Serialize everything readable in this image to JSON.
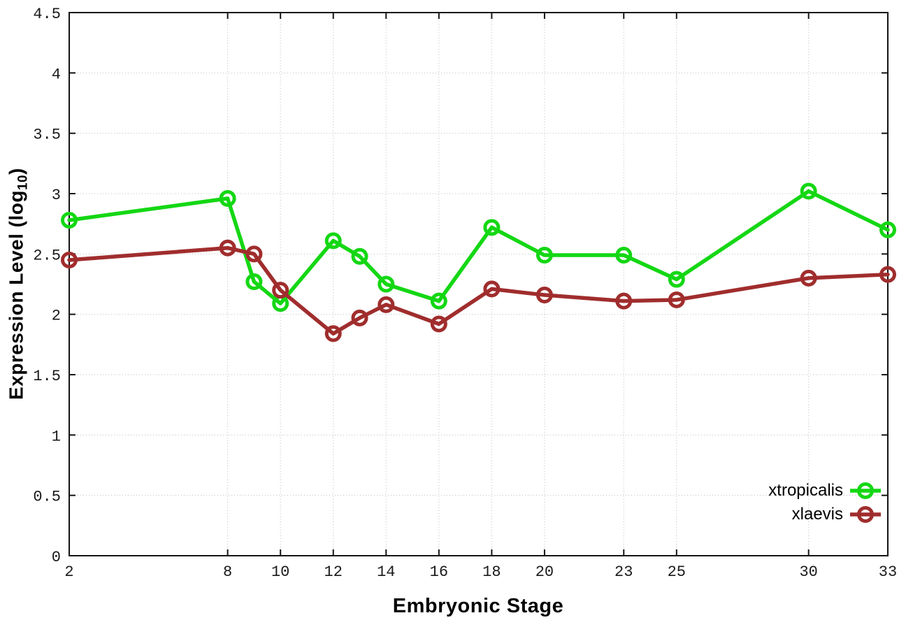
{
  "figure": {
    "background": "#ffffff",
    "border_color": "#141414",
    "grid_color": "#bfbfbf",
    "tick_label_color": "#1a1a1a"
  },
  "x_axis": {
    "title": "Embryonic Stage",
    "tick_labels": [
      "2",
      "8",
      "10",
      "12",
      "14",
      "16",
      "18",
      "20",
      "23",
      "25",
      "30",
      "33"
    ]
  },
  "y_axis": {
    "title_pre": "Expression Level (log",
    "title_sub": "10",
    "title_post": ")",
    "tick_labels": [
      "0",
      "0.5",
      "1",
      "1.5",
      "2",
      "2.5",
      "3",
      "3.5",
      "4",
      "4.5"
    ]
  },
  "legend": {
    "items": [
      {
        "label": "xtropicalis",
        "color": "#14d714"
      },
      {
        "label": "xlaevis",
        "color": "#a02d2d"
      }
    ]
  },
  "chart_data": {
    "type": "line",
    "title": "",
    "xlabel": "Embryonic Stage",
    "ylabel": "Expression Level (log10)",
    "xlim": [
      2,
      33
    ],
    "ylim": [
      0,
      4.5
    ],
    "xticks": [
      2,
      8,
      10,
      12,
      14,
      16,
      18,
      20,
      23,
      25,
      30,
      33
    ],
    "yticks": [
      0,
      0.5,
      1,
      1.5,
      2,
      2.5,
      3,
      3.5,
      4,
      4.5
    ],
    "grid": true,
    "legend_position": "inside bottom right",
    "marker": "open-circle",
    "x": [
      2,
      8,
      9,
      10,
      12,
      13,
      14,
      16,
      18,
      20,
      23,
      25,
      30,
      33
    ],
    "series": [
      {
        "name": "xtropicalis",
        "color": "#14d714",
        "values": [
          2.78,
          2.96,
          2.27,
          2.09,
          2.61,
          2.48,
          2.25,
          2.11,
          2.72,
          2.49,
          2.49,
          2.29,
          3.02,
          2.7
        ]
      },
      {
        "name": "xlaevis",
        "color": "#a02d2d",
        "values": [
          2.45,
          2.55,
          2.5,
          2.2,
          1.84,
          1.97,
          2.08,
          1.92,
          2.21,
          2.16,
          2.11,
          2.12,
          2.3,
          2.33
        ]
      }
    ]
  }
}
